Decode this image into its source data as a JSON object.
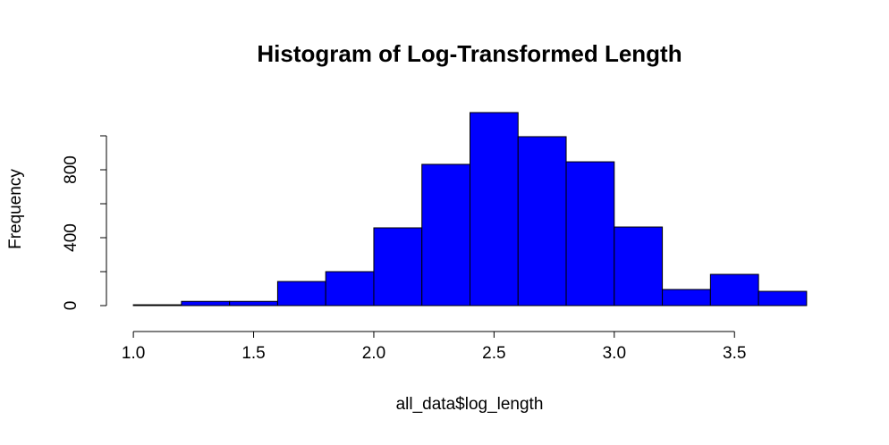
{
  "chart_data": {
    "type": "histogram",
    "title": "Histogram of Log-Transformed Length",
    "x_label": "all_data$log_length",
    "y_label": "Frequency",
    "bins": [
      1.0,
      1.2,
      1.4,
      1.6,
      1.8,
      2.0,
      2.2,
      2.4,
      2.6,
      2.8,
      3.0,
      3.2,
      3.4,
      3.6,
      3.8
    ],
    "values": [
      5,
      25,
      25,
      142,
      200,
      458,
      832,
      1137,
      995,
      847,
      463,
      95,
      184,
      84
    ],
    "color": "#0000ff",
    "xlim": [
      0.888,
      3.912
    ],
    "xticks": [
      {
        "value": 1,
        "label": "1.0"
      },
      1.5,
      {
        "value": 2,
        "label": "2.0"
      },
      2.5,
      {
        "value": 3,
        "label": "3.0"
      },
      3.5
    ],
    "ylim": [
      0,
      1200
    ],
    "yticks": [
      0,
      400,
      800
    ],
    "yminor_ticks": [
      200,
      600,
      1000
    ]
  }
}
